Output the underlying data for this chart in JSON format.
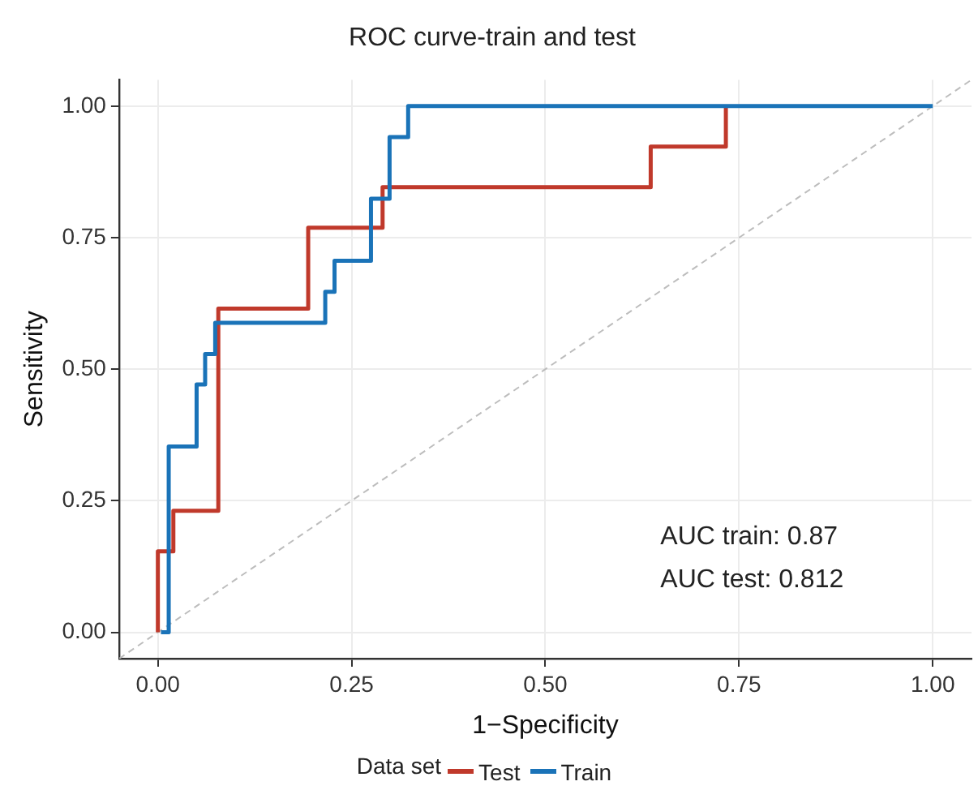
{
  "chart_data": {
    "type": "step",
    "title": "ROC curve-train and test",
    "xlabel": "1−Specificity",
    "ylabel": "Sensitivity",
    "legend_title": "Data set",
    "legend": "bottom",
    "grid": true,
    "marker": "none",
    "xlim": [
      -0.05,
      1.05
    ],
    "ylim": [
      -0.05,
      1.05
    ],
    "xticks": [
      {
        "value": 0,
        "label": "0.00"
      },
      {
        "value": 0.25,
        "label": "0.25"
      },
      {
        "value": 0.5,
        "label": "0.50"
      },
      {
        "value": 0.75,
        "label": "0.75"
      },
      {
        "value": 1,
        "label": "1.00"
      }
    ],
    "yticks": [
      {
        "value": 0,
        "label": "0.00"
      },
      {
        "value": 0.25,
        "label": "0.25"
      },
      {
        "value": 0.5,
        "label": "0.50"
      },
      {
        "value": 0.75,
        "label": "0.75"
      },
      {
        "value": 1,
        "label": "1.00"
      }
    ],
    "series": [
      {
        "type": "line",
        "line_style": "dashed",
        "color": "#bdbdbd",
        "x": [
          -0.05,
          1.05
        ],
        "values": [
          -0.05,
          1.05
        ]
      },
      {
        "name": "Test",
        "color": "#c0392b",
        "x": [
          0,
          0,
          0.02,
          0.078,
          0.194,
          0.29,
          0.636,
          0.733
        ],
        "values": [
          0,
          0.154,
          0.231,
          0.615,
          0.769,
          0.846,
          0.923,
          1
        ]
      },
      {
        "name": "Train",
        "color": "#1a73b8",
        "x": [
          0.004,
          0.014,
          0.05,
          0.061,
          0.074,
          0.216,
          0.228,
          0.275,
          0.299,
          0.323,
          1.0
        ],
        "values": [
          0,
          0.353,
          0.471,
          0.529,
          0.588,
          0.647,
          0.706,
          0.824,
          0.941,
          1,
          1
        ]
      }
    ],
    "annotations": [
      "AUC train: 0.87",
      "AUC test: 0.812"
    ]
  }
}
